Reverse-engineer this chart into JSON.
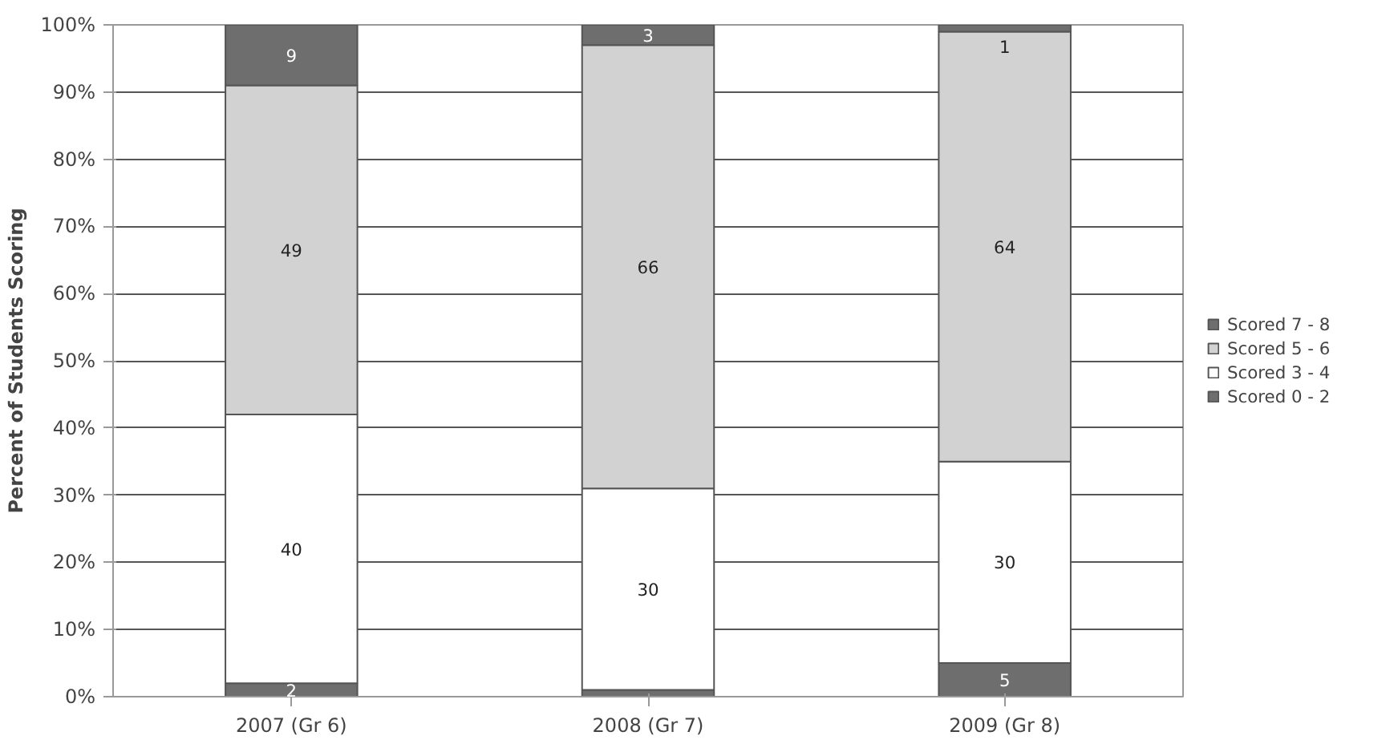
{
  "chart_data": {
    "type": "bar",
    "stacked": true,
    "ylabel": "Percent of Students Scoring",
    "categories": [
      "2007 (Gr 6)",
      "2008 (Gr 7)",
      "2009 (Gr 8)"
    ],
    "series": [
      {
        "name": "Scored 0 - 2",
        "color": "#6e6e6e",
        "values": [
          2,
          1,
          5
        ],
        "value_labels": [
          "2",
          null,
          "5"
        ]
      },
      {
        "name": "Scored 3 - 4",
        "color": "#ffffff",
        "values": [
          40,
          30,
          30
        ],
        "value_labels": [
          "40",
          "30",
          "30"
        ]
      },
      {
        "name": "Scored 5 - 6",
        "color": "#d2d2d2",
        "values": [
          49,
          66,
          64
        ],
        "value_labels": [
          "49",
          "66",
          "64"
        ]
      },
      {
        "name": "Scored 7 - 8",
        "color": "#6e6e6e",
        "values": [
          9,
          3,
          1
        ],
        "value_labels": [
          "9",
          "3",
          "1"
        ]
      }
    ],
    "ylim": [
      0,
      100
    ],
    "yticks": [
      {
        "value": 0,
        "label": "0%"
      },
      {
        "value": 10,
        "label": "10%"
      },
      {
        "value": 20,
        "label": "20%"
      },
      {
        "value": 30,
        "label": "30%"
      },
      {
        "value": 40,
        "label": "40%"
      },
      {
        "value": 50,
        "label": "50%"
      },
      {
        "value": 60,
        "label": "60%"
      },
      {
        "value": 70,
        "label": "70%"
      },
      {
        "value": 80,
        "label": "80%"
      },
      {
        "value": 90,
        "label": "90%"
      },
      {
        "value": 100,
        "label": "100%"
      }
    ],
    "grid": "y",
    "legend": "right"
  }
}
